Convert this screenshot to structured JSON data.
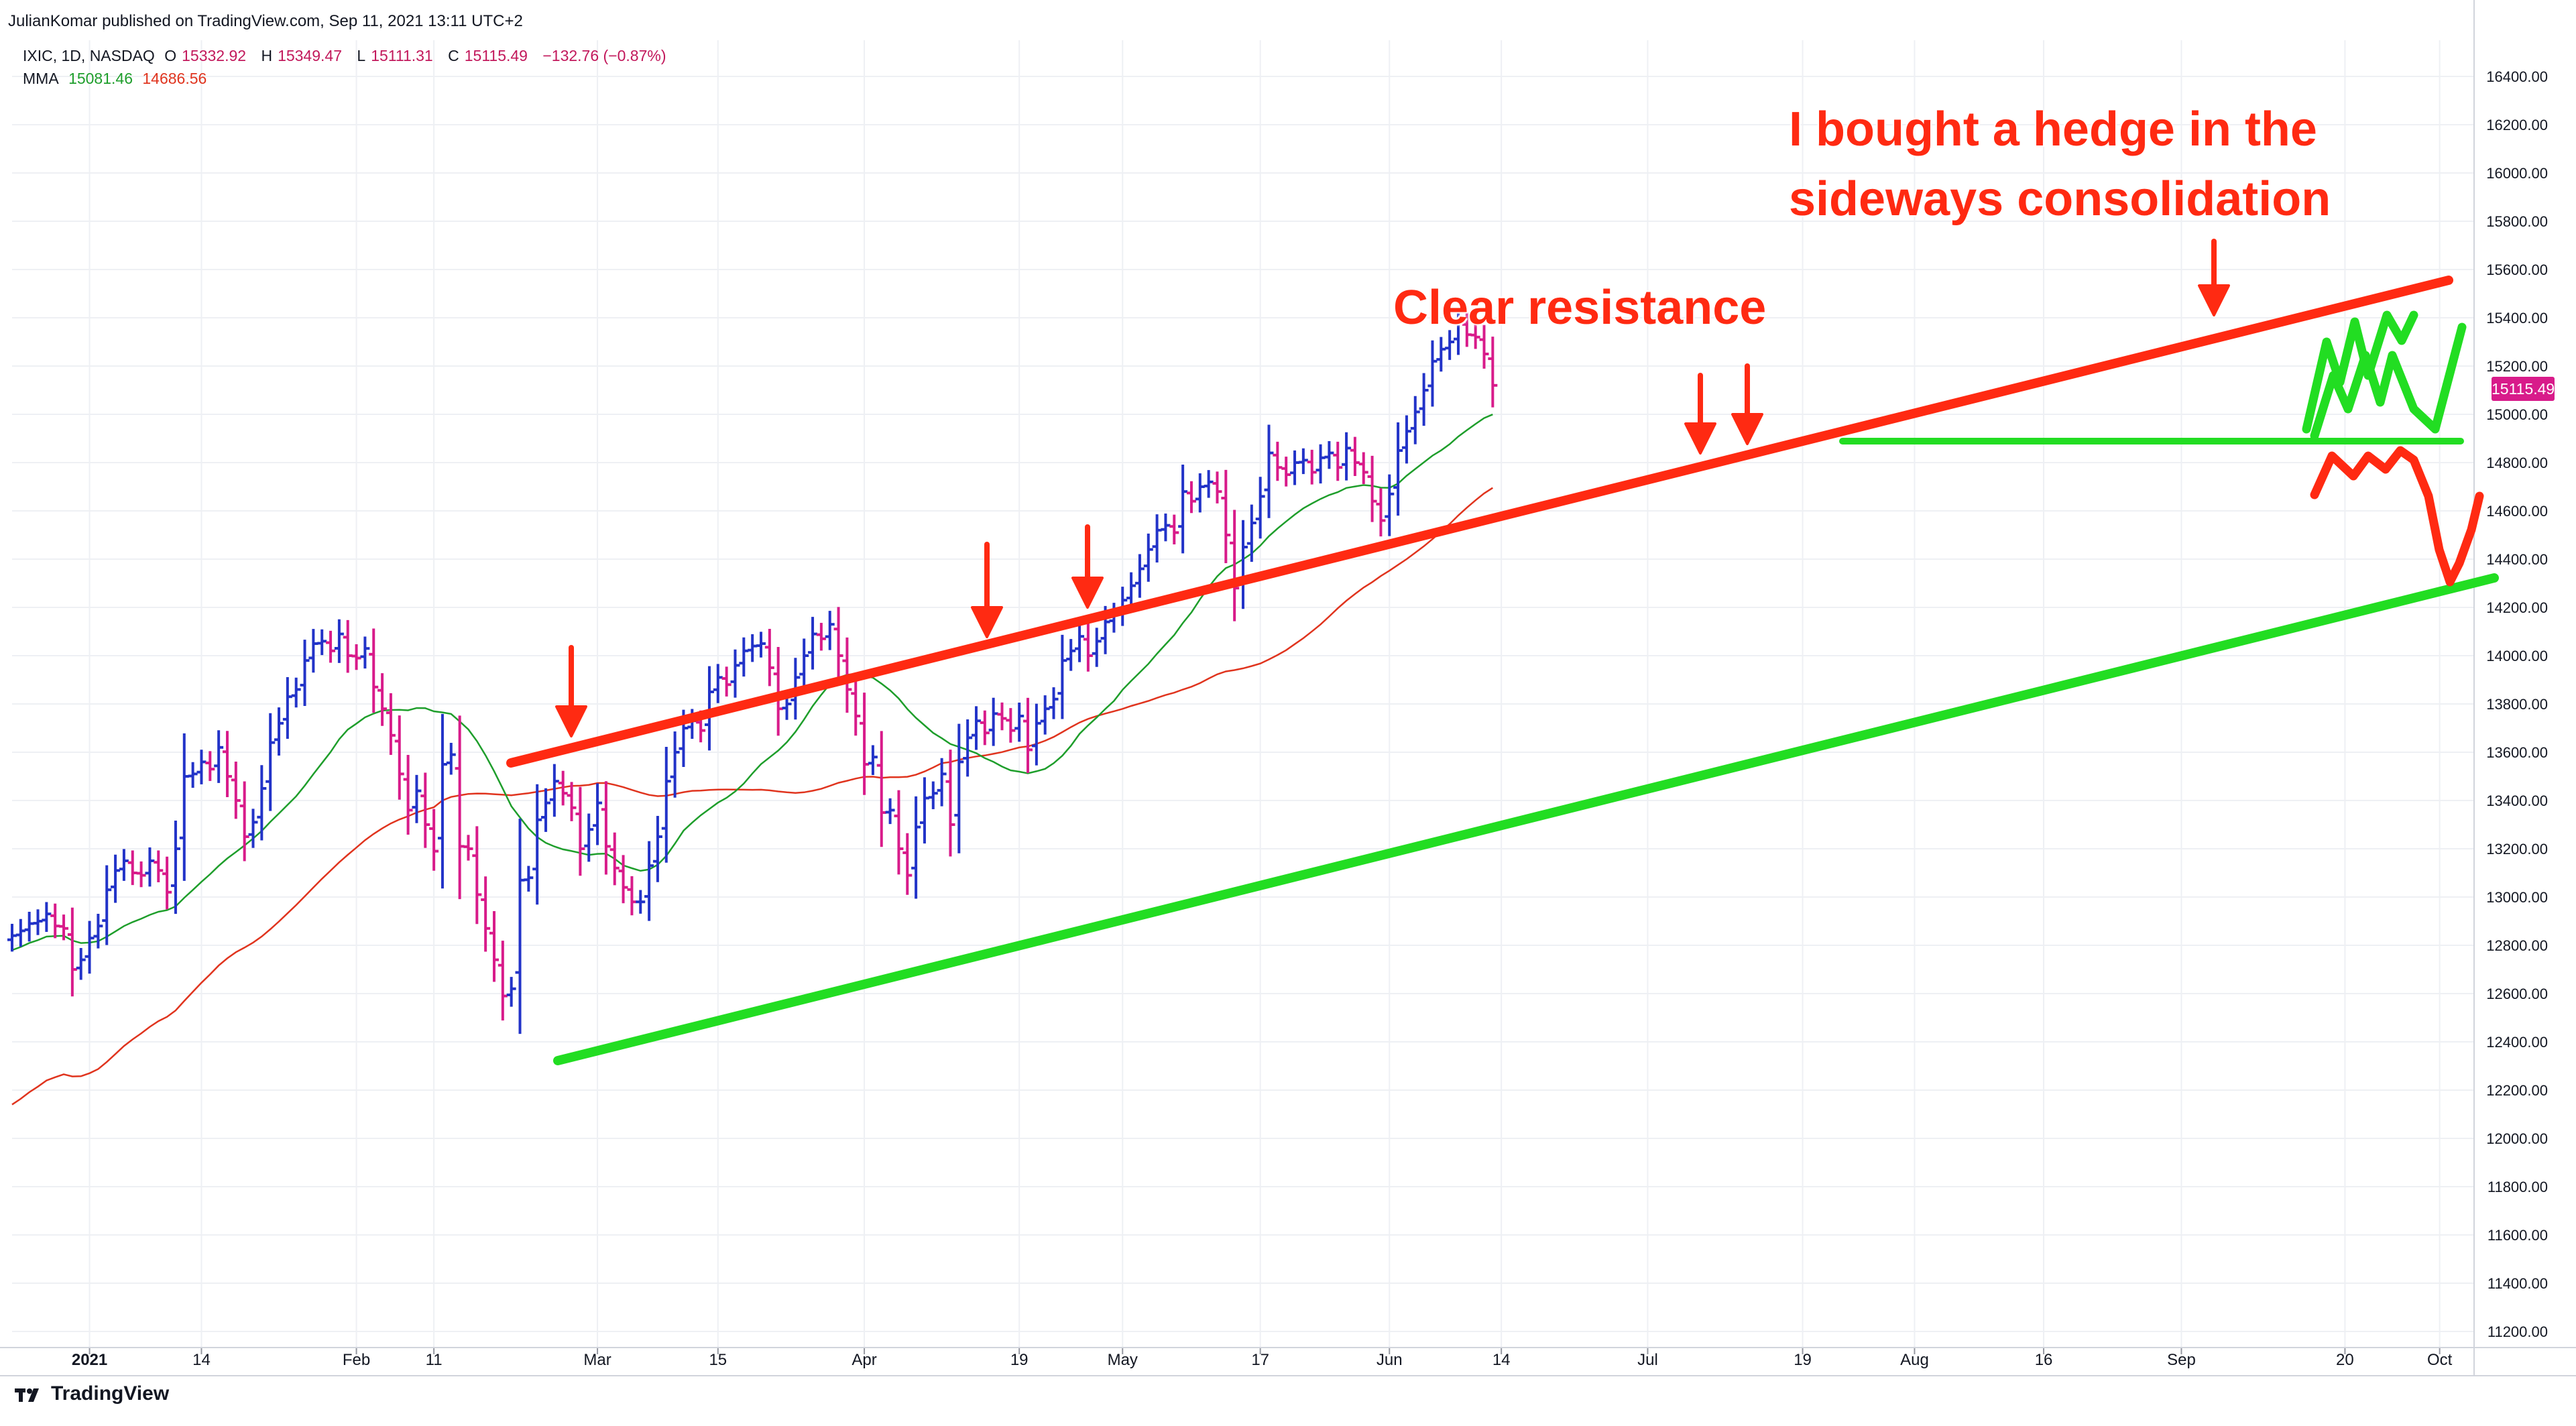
{
  "header": {
    "publisher": "JulianKomar published on TradingView.com, Sep 11, 2021 13:11 UTC+2",
    "symbol": "IXIC, 1D, NASDAQ",
    "ohlc": {
      "o_label": "O",
      "o": "15332.92",
      "h_label": "H",
      "h": "15349.47",
      "l_label": "L",
      "l": "15111.31",
      "c_label": "C",
      "c": "15115.49",
      "change": "−132.76 (−0.87%)"
    },
    "mma": {
      "label": "MMA",
      "fast": "15081.46",
      "slow": "14686.56"
    }
  },
  "price_tag": "15115.49",
  "annotations": {
    "resistance": "Clear resistance",
    "hedge_line1": "I bought a hedge in the",
    "hedge_line2": "sideways consolidation"
  },
  "brand": "TradingView",
  "colors": {
    "up_bar": "#2233c8",
    "down_bar": "#d81b8a",
    "fast_ma": "#1e9e2b",
    "slow_ma": "#e0341e",
    "drawing_red": "#ff2a12",
    "drawing_green": "#22dd22",
    "grid": "#eef0f4"
  },
  "chart_data": {
    "type": "ohlc",
    "title": "IXIC, 1D, NASDAQ",
    "x_start_date": "2020-12-24",
    "x_ticks": [
      {
        "label": "2021",
        "day": 8,
        "bold": true
      },
      {
        "label": "14",
        "day": 21
      },
      {
        "label": "Feb",
        "day": 39
      },
      {
        "label": "11",
        "day": 48
      },
      {
        "label": "Mar",
        "day": 67
      },
      {
        "label": "15",
        "day": 81
      },
      {
        "label": "Apr",
        "day": 98
      },
      {
        "label": "19",
        "day": 116
      },
      {
        "label": "May",
        "day": 128
      },
      {
        "label": "17",
        "day": 144
      },
      {
        "label": "Jun",
        "day": 159
      },
      {
        "label": "14",
        "day": 172
      },
      {
        "label": "Jul",
        "day": 189
      },
      {
        "label": "19",
        "day": 207
      },
      {
        "label": "Aug",
        "day": 220
      },
      {
        "label": "16",
        "day": 235
      },
      {
        "label": "Sep",
        "day": 251
      },
      {
        "label": "20",
        "day": 270
      },
      {
        "label": "Oct",
        "day": 281
      }
    ],
    "y_ticks": [
      11200,
      11400,
      11600,
      11800,
      12000,
      12200,
      12400,
      12600,
      12800,
      13000,
      13200,
      13400,
      13600,
      13800,
      14000,
      14200,
      14400,
      14600,
      14800,
      15000,
      15200,
      15400,
      15600,
      15800,
      16000,
      16200,
      16400
    ],
    "ylim": [
      11150,
      16500
    ],
    "xlim_days": [
      -1,
      285
    ],
    "grid": true,
    "candles_approx_close": [
      [
        -1,
        12840
      ],
      [
        0,
        12860
      ],
      [
        1,
        12890
      ],
      [
        2,
        12900
      ],
      [
        3,
        12930
      ],
      [
        4,
        12880
      ],
      [
        5,
        12870
      ],
      [
        6,
        12700
      ],
      [
        7,
        12740
      ],
      [
        8,
        12830
      ],
      [
        9,
        12880
      ],
      [
        10,
        13030
      ],
      [
        11,
        13110
      ],
      [
        12,
        13150
      ],
      [
        13,
        13100
      ],
      [
        14,
        13090
      ],
      [
        15,
        13150
      ],
      [
        16,
        13110
      ],
      [
        17,
        13020
      ],
      [
        18,
        13200
      ],
      [
        19,
        13500
      ],
      [
        20,
        13510
      ],
      [
        21,
        13560
      ],
      [
        22,
        13530
      ],
      [
        23,
        13620
      ],
      [
        24,
        13500
      ],
      [
        25,
        13400
      ],
      [
        26,
        13250
      ],
      [
        27,
        13310
      ],
      [
        28,
        13450
      ],
      [
        29,
        13640
      ],
      [
        30,
        13720
      ],
      [
        31,
        13830
      ],
      [
        32,
        13860
      ],
      [
        33,
        13980
      ],
      [
        34,
        14050
      ],
      [
        35,
        14060
      ],
      [
        36,
        14020
      ],
      [
        37,
        14090
      ],
      [
        38,
        14000
      ],
      [
        39,
        13990
      ],
      [
        40,
        14030
      ],
      [
        41,
        13870
      ],
      [
        42,
        13780
      ],
      [
        43,
        13670
      ],
      [
        44,
        13510
      ],
      [
        45,
        13360
      ],
      [
        46,
        13440
      ],
      [
        47,
        13300
      ],
      [
        48,
        13190
      ],
      [
        49,
        13550
      ],
      [
        50,
        13590
      ],
      [
        51,
        13210
      ],
      [
        52,
        13200
      ],
      [
        53,
        13010
      ],
      [
        54,
        12870
      ],
      [
        55,
        12740
      ],
      [
        56,
        12590
      ],
      [
        57,
        12620
      ],
      [
        58,
        13070
      ],
      [
        59,
        13080
      ],
      [
        60,
        13320
      ],
      [
        61,
        13390
      ],
      [
        62,
        13480
      ],
      [
        63,
        13430
      ],
      [
        64,
        13370
      ],
      [
        65,
        13200
      ],
      [
        66,
        13280
      ],
      [
        67,
        13390
      ],
      [
        68,
        13210
      ],
      [
        69,
        13120
      ],
      [
        70,
        13040
      ],
      [
        71,
        12980
      ],
      [
        72,
        12980
      ],
      [
        73,
        13130
      ],
      [
        74,
        13250
      ],
      [
        75,
        13480
      ],
      [
        76,
        13600
      ],
      [
        77,
        13700
      ],
      [
        78,
        13730
      ],
      [
        79,
        13690
      ],
      [
        80,
        13850
      ],
      [
        81,
        13910
      ],
      [
        82,
        13880
      ],
      [
        83,
        13960
      ],
      [
        84,
        14020
      ],
      [
        85,
        14040
      ],
      [
        86,
        14050
      ],
      [
        87,
        13950
      ],
      [
        88,
        13780
      ],
      [
        89,
        13800
      ],
      [
        90,
        13910
      ],
      [
        91,
        14000
      ],
      [
        92,
        14090
      ],
      [
        93,
        14070
      ],
      [
        94,
        14130
      ],
      [
        95,
        14000
      ],
      [
        96,
        13860
      ],
      [
        97,
        13750
      ],
      [
        98,
        13550
      ],
      [
        99,
        13580
      ],
      [
        100,
        13350
      ],
      [
        101,
        13360
      ],
      [
        102,
        13200
      ],
      [
        103,
        13090
      ],
      [
        104,
        13290
      ],
      [
        105,
        13410
      ],
      [
        106,
        13430
      ],
      [
        107,
        13510
      ],
      [
        108,
        13300
      ],
      [
        109,
        13560
      ],
      [
        110,
        13660
      ],
      [
        111,
        13730
      ],
      [
        112,
        13680
      ],
      [
        113,
        13760
      ],
      [
        114,
        13740
      ],
      [
        115,
        13690
      ],
      [
        116,
        13750
      ],
      [
        117,
        13610
      ],
      [
        118,
        13720
      ],
      [
        119,
        13780
      ],
      [
        120,
        13820
      ],
      [
        121,
        13980
      ],
      [
        122,
        14020
      ],
      [
        123,
        14080
      ],
      [
        124,
        14000
      ],
      [
        125,
        14060
      ],
      [
        126,
        14140
      ],
      [
        127,
        14170
      ],
      [
        128,
        14230
      ],
      [
        129,
        14290
      ],
      [
        130,
        14360
      ],
      [
        131,
        14440
      ],
      [
        132,
        14520
      ],
      [
        133,
        14540
      ],
      [
        134,
        14510
      ],
      [
        135,
        14680
      ],
      [
        136,
        14640
      ],
      [
        137,
        14700
      ],
      [
        138,
        14720
      ],
      [
        139,
        14680
      ],
      [
        140,
        14500
      ],
      [
        141,
        14280
      ],
      [
        142,
        14450
      ],
      [
        143,
        14550
      ],
      [
        144,
        14660
      ],
      [
        145,
        14840
      ],
      [
        146,
        14780
      ],
      [
        147,
        14750
      ],
      [
        148,
        14800
      ],
      [
        149,
        14810
      ],
      [
        150,
        14760
      ],
      [
        151,
        14820
      ],
      [
        152,
        14840
      ],
      [
        153,
        14780
      ],
      [
        154,
        14860
      ],
      [
        155,
        14800
      ],
      [
        156,
        14760
      ],
      [
        157,
        14640
      ],
      [
        158,
        14560
      ],
      [
        159,
        14670
      ],
      [
        160,
        14850
      ],
      [
        161,
        14930
      ],
      [
        162,
        15010
      ],
      [
        163,
        15100
      ],
      [
        164,
        15220
      ],
      [
        165,
        15270
      ],
      [
        166,
        15300
      ],
      [
        167,
        15380
      ],
      [
        168,
        15330
      ],
      [
        169,
        15320
      ],
      [
        170,
        15250
      ],
      [
        171,
        15120
      ]
    ]
  }
}
